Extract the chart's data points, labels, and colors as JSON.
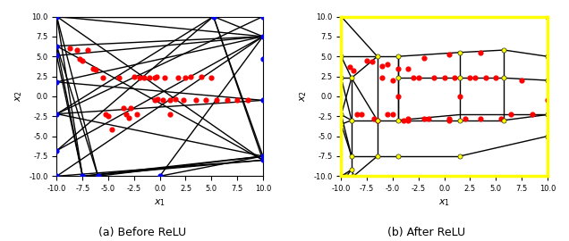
{
  "xlim": [
    -10,
    10
  ],
  "ylim": [
    -10,
    10
  ],
  "xlabel": "$x_1$",
  "ylabel": "$x_2$",
  "title_a": "(a) Before ReLU",
  "title_b": "(b) After ReLU",
  "figsize": [
    6.36,
    2.7
  ],
  "dpi": 100,
  "lines_before": [
    [
      [
        -10,
        6.3
      ],
      [
        10,
        7.5
      ]
    ],
    [
      [
        -10,
        6.3
      ],
      [
        10,
        -8.0
      ]
    ],
    [
      [
        -10,
        5.1
      ],
      [
        10,
        7.5
      ]
    ],
    [
      [
        -10,
        5.1
      ],
      [
        -7.5,
        -10
      ]
    ],
    [
      [
        -10,
        6.3
      ],
      [
        -7.5,
        -10
      ]
    ],
    [
      [
        -10,
        6.3
      ],
      [
        -6.0,
        -10
      ]
    ],
    [
      [
        -10,
        10.0
      ],
      [
        -6.0,
        -10
      ]
    ],
    [
      [
        -10,
        10.0
      ],
      [
        5.2,
        10.0
      ]
    ],
    [
      [
        -10,
        10.0
      ],
      [
        10,
        7.5
      ]
    ],
    [
      [
        -10,
        10.0
      ],
      [
        10,
        -8.0
      ]
    ],
    [
      [
        -10,
        10.0
      ],
      [
        -7.5,
        -10
      ]
    ],
    [
      [
        5.2,
        10.0
      ],
      [
        10,
        7.5
      ]
    ],
    [
      [
        5.2,
        10.0
      ],
      [
        10,
        -7.5
      ]
    ],
    [
      [
        5.2,
        10.0
      ],
      [
        10,
        -8.0
      ]
    ],
    [
      [
        -10,
        -2.2
      ],
      [
        5.2,
        10.0
      ]
    ],
    [
      [
        -10,
        -2.2
      ],
      [
        10,
        10.0
      ]
    ],
    [
      [
        -10,
        -2.2
      ],
      [
        10,
        -0.5
      ]
    ],
    [
      [
        -10,
        -2.2
      ],
      [
        10,
        -7.5
      ]
    ],
    [
      [
        -10,
        1.8
      ],
      [
        10,
        7.5
      ]
    ],
    [
      [
        -10,
        1.8
      ],
      [
        10,
        -0.5
      ]
    ],
    [
      [
        -10,
        -6.8
      ],
      [
        5.2,
        10.0
      ]
    ],
    [
      [
        -10,
        -6.8
      ],
      [
        10,
        7.5
      ]
    ],
    [
      [
        -7.5,
        -10
      ],
      [
        10,
        -7.5
      ]
    ],
    [
      [
        -7.5,
        -10
      ],
      [
        10,
        -8.0
      ]
    ],
    [
      [
        -6.0,
        -10
      ],
      [
        10,
        -7.5
      ]
    ],
    [
      [
        0.0,
        -10
      ],
      [
        10,
        -7.5
      ]
    ],
    [
      [
        0.0,
        -10
      ],
      [
        10,
        7.5
      ]
    ],
    [
      [
        -10,
        -10
      ],
      [
        10,
        7.5
      ]
    ],
    [
      [
        -10,
        -10
      ],
      [
        10,
        -8.0
      ]
    ]
  ],
  "blue_points_before": [
    [
      -10,
      10.0
    ],
    [
      5.2,
      10.0
    ],
    [
      10,
      10.0
    ],
    [
      -10,
      6.3
    ],
    [
      -10,
      5.1
    ],
    [
      -10,
      1.8
    ],
    [
      -10,
      -2.2
    ],
    [
      -10,
      -6.8
    ],
    [
      -10,
      -10.0
    ],
    [
      -7.5,
      -10.0
    ],
    [
      -6.0,
      -10.0
    ],
    [
      0.0,
      -10.0
    ],
    [
      10,
      7.5
    ],
    [
      10,
      -0.5
    ],
    [
      10,
      -7.5
    ],
    [
      10,
      -8.0
    ],
    [
      10,
      4.7
    ]
  ],
  "red_points_before": [
    [
      -8.7,
      6.0
    ],
    [
      -8.0,
      5.8
    ],
    [
      -7.8,
      4.7
    ],
    [
      -7.5,
      4.5
    ],
    [
      -7.0,
      5.8
    ],
    [
      -6.5,
      3.5
    ],
    [
      -6.2,
      3.3
    ],
    [
      -5.5,
      2.3
    ],
    [
      -5.3,
      -2.3
    ],
    [
      -5.0,
      -2.5
    ],
    [
      -4.7,
      -4.2
    ],
    [
      -4.0,
      2.3
    ],
    [
      -3.5,
      -1.5
    ],
    [
      -3.3,
      -2.3
    ],
    [
      -3.0,
      -2.7
    ],
    [
      -2.8,
      -1.5
    ],
    [
      -2.5,
      2.5
    ],
    [
      -2.0,
      2.3
    ],
    [
      -1.5,
      2.3
    ],
    [
      -1.0,
      2.3
    ],
    [
      -0.5,
      2.3
    ],
    [
      -0.3,
      2.5
    ],
    [
      -0.2,
      -0.3
    ],
    [
      0.3,
      -0.5
    ],
    [
      0.5,
      2.3
    ],
    [
      1.0,
      -0.5
    ],
    [
      1.5,
      -0.3
    ],
    [
      1.8,
      2.3
    ],
    [
      2.3,
      -0.5
    ],
    [
      2.5,
      2.3
    ],
    [
      3.0,
      2.5
    ],
    [
      3.5,
      -0.5
    ],
    [
      4.0,
      2.5
    ],
    [
      4.5,
      -0.5
    ],
    [
      5.0,
      2.3
    ],
    [
      5.5,
      -0.5
    ],
    [
      6.5,
      -0.5
    ],
    [
      7.5,
      -0.5
    ],
    [
      8.5,
      -0.5
    ],
    [
      -2.2,
      -2.3
    ],
    [
      1.0,
      -2.3
    ],
    [
      -0.5,
      -0.5
    ]
  ],
  "lines_after": [
    [
      [
        -10,
        10.0
      ],
      [
        10,
        10.0
      ]
    ],
    [
      [
        -10,
        -10.0
      ],
      [
        -10,
        10.0
      ]
    ],
    [
      [
        -10,
        -10.0
      ],
      [
        -9.5,
        -10.0
      ]
    ],
    [
      [
        -9.5,
        -10.0
      ],
      [
        -9.0,
        -9.2
      ]
    ],
    [
      [
        -10,
        -10.0
      ],
      [
        -9.0,
        -9.2
      ]
    ],
    [
      [
        -9.0,
        -9.2
      ],
      [
        -8.8,
        -10.0
      ]
    ],
    [
      [
        -9.0,
        -9.2
      ],
      [
        -9.0,
        -7.5
      ]
    ],
    [
      [
        -10,
        -3.5
      ],
      [
        -9.0,
        -7.5
      ]
    ],
    [
      [
        -10,
        -2.3
      ],
      [
        -9.0,
        -7.5
      ]
    ],
    [
      [
        -10,
        -2.3
      ],
      [
        -9.0,
        -3.0
      ]
    ],
    [
      [
        -10,
        -2.3
      ],
      [
        -9.0,
        2.3
      ]
    ],
    [
      [
        -10,
        2.3
      ],
      [
        -9.0,
        2.3
      ]
    ],
    [
      [
        -10,
        5.0
      ],
      [
        -9.0,
        2.3
      ]
    ],
    [
      [
        -10,
        5.0
      ],
      [
        -6.5,
        5.0
      ]
    ],
    [
      [
        -10,
        10.0
      ],
      [
        -6.5,
        5.0
      ]
    ],
    [
      [
        -9.0,
        2.3
      ],
      [
        -6.5,
        5.0
      ]
    ],
    [
      [
        -9.0,
        2.3
      ],
      [
        -6.5,
        -3.0
      ]
    ],
    [
      [
        -9.0,
        -3.0
      ],
      [
        -6.5,
        -3.0
      ]
    ],
    [
      [
        -9.0,
        -7.5
      ],
      [
        -6.5,
        -7.5
      ]
    ],
    [
      [
        -8.8,
        -10.0
      ],
      [
        -6.5,
        -7.5
      ]
    ],
    [
      [
        -6.5,
        -7.5
      ],
      [
        -4.5,
        -7.5
      ]
    ],
    [
      [
        -4.5,
        -7.5
      ],
      [
        1.5,
        -7.5
      ]
    ],
    [
      [
        1.5,
        -7.5
      ],
      [
        10,
        -5.0
      ]
    ],
    [
      [
        -6.5,
        5.0
      ],
      [
        -4.5,
        5.0
      ]
    ],
    [
      [
        -4.5,
        5.0
      ],
      [
        1.5,
        5.5
      ]
    ],
    [
      [
        1.5,
        5.5
      ],
      [
        5.8,
        5.8
      ]
    ],
    [
      [
        5.8,
        5.8
      ],
      [
        10,
        5.0
      ]
    ],
    [
      [
        -6.5,
        -3.0
      ],
      [
        -4.5,
        -3.0
      ]
    ],
    [
      [
        -4.5,
        -3.0
      ],
      [
        1.5,
        -2.3
      ]
    ],
    [
      [
        1.5,
        -2.3
      ],
      [
        10,
        -2.3
      ]
    ],
    [
      [
        -6.5,
        5.0
      ],
      [
        -6.5,
        -3.0
      ]
    ],
    [
      [
        -4.5,
        5.0
      ],
      [
        -4.5,
        -3.0
      ]
    ],
    [
      [
        -4.5,
        5.0
      ],
      [
        -4.5,
        2.3
      ]
    ],
    [
      [
        -4.5,
        2.3
      ],
      [
        1.5,
        2.3
      ]
    ],
    [
      [
        1.5,
        2.3
      ],
      [
        1.5,
        5.5
      ]
    ],
    [
      [
        1.5,
        2.3
      ],
      [
        5.8,
        2.3
      ]
    ],
    [
      [
        5.8,
        2.3
      ],
      [
        5.8,
        5.8
      ]
    ],
    [
      [
        5.8,
        2.3
      ],
      [
        10,
        2.0
      ]
    ],
    [
      [
        -4.5,
        2.3
      ],
      [
        -4.5,
        -3.0
      ]
    ],
    [
      [
        -4.5,
        -3.0
      ],
      [
        1.5,
        -3.0
      ]
    ],
    [
      [
        1.5,
        -3.0
      ],
      [
        1.5,
        2.3
      ]
    ],
    [
      [
        1.5,
        -3.0
      ],
      [
        5.8,
        -3.0
      ]
    ],
    [
      [
        5.8,
        -3.0
      ],
      [
        10,
        -2.3
      ]
    ],
    [
      [
        5.8,
        -3.0
      ],
      [
        5.8,
        2.3
      ]
    ],
    [
      [
        10,
        5.0
      ],
      [
        10,
        2.0
      ]
    ],
    [
      [
        10,
        2.0
      ],
      [
        10,
        -2.3
      ]
    ],
    [
      [
        10,
        -2.3
      ],
      [
        10,
        -5.0
      ]
    ],
    [
      [
        -9.0,
        -3.0
      ],
      [
        -9.0,
        2.3
      ]
    ],
    [
      [
        -9.0,
        -7.5
      ],
      [
        -9.0,
        -3.0
      ]
    ],
    [
      [
        -6.5,
        -3.0
      ],
      [
        -6.5,
        -7.5
      ]
    ],
    [
      [
        -10,
        2.3
      ],
      [
        -9.0,
        -3.0
      ]
    ],
    [
      [
        -10,
        -3.5
      ],
      [
        -9.0,
        -3.0
      ]
    ]
  ],
  "yellow_points_after": [
    [
      -10,
      10.0
    ],
    [
      -10,
      5.0
    ],
    [
      -10,
      2.3
    ],
    [
      -10,
      -2.3
    ],
    [
      -10,
      -3.5
    ],
    [
      -10,
      -10.0
    ],
    [
      10,
      10.0
    ],
    [
      10,
      5.0
    ],
    [
      10,
      2.0
    ],
    [
      10,
      -2.3
    ],
    [
      10,
      -5.0
    ],
    [
      -9.5,
      -10.0
    ],
    [
      -9.0,
      -9.2
    ],
    [
      -8.8,
      -10.0
    ],
    [
      -9.0,
      2.3
    ],
    [
      -9.0,
      -3.0
    ],
    [
      -9.0,
      -7.5
    ],
    [
      -6.5,
      5.0
    ],
    [
      -6.5,
      -3.0
    ],
    [
      -6.5,
      -7.5
    ],
    [
      -4.5,
      5.0
    ],
    [
      -4.5,
      2.3
    ],
    [
      -4.5,
      -3.0
    ],
    [
      -4.5,
      -7.5
    ],
    [
      1.5,
      5.5
    ],
    [
      1.5,
      2.3
    ],
    [
      1.5,
      -3.0
    ],
    [
      1.5,
      -7.5
    ],
    [
      5.8,
      5.8
    ],
    [
      5.8,
      2.3
    ],
    [
      5.8,
      -3.0
    ]
  ],
  "red_points_after": [
    [
      -9.2,
      3.7
    ],
    [
      -8.8,
      3.2
    ],
    [
      -8.5,
      -2.3
    ],
    [
      -8.0,
      -2.3
    ],
    [
      -7.5,
      4.5
    ],
    [
      -7.0,
      4.3
    ],
    [
      -6.8,
      -2.8
    ],
    [
      -6.5,
      -3.0
    ],
    [
      -6.0,
      3.8
    ],
    [
      -5.5,
      4.0
    ],
    [
      -5.5,
      -2.3
    ],
    [
      -5.0,
      -2.3
    ],
    [
      -4.5,
      0.0
    ],
    [
      -4.5,
      3.5
    ],
    [
      -4.0,
      -3.0
    ],
    [
      -3.5,
      -2.8
    ],
    [
      -3.0,
      2.3
    ],
    [
      -2.5,
      2.3
    ],
    [
      -2.0,
      -2.8
    ],
    [
      -1.5,
      -2.8
    ],
    [
      -1.0,
      2.3
    ],
    [
      0.0,
      2.3
    ],
    [
      0.5,
      -2.8
    ],
    [
      1.0,
      2.3
    ],
    [
      1.5,
      0.0
    ],
    [
      2.0,
      -2.8
    ],
    [
      2.5,
      2.3
    ],
    [
      3.0,
      2.3
    ],
    [
      3.5,
      -2.8
    ],
    [
      4.0,
      2.3
    ],
    [
      5.0,
      2.3
    ],
    [
      5.5,
      -2.8
    ],
    [
      6.5,
      -2.3
    ],
    [
      7.5,
      2.0
    ],
    [
      8.5,
      -2.3
    ],
    [
      10.0,
      -0.5
    ],
    [
      -3.5,
      3.5
    ],
    [
      -2.0,
      4.8
    ],
    [
      0.5,
      5.2
    ],
    [
      3.5,
      5.5
    ],
    [
      -6.0,
      2.3
    ],
    [
      -5.0,
      2.0
    ],
    [
      -3.5,
      -3.0
    ],
    [
      0.5,
      -3.0
    ]
  ]
}
